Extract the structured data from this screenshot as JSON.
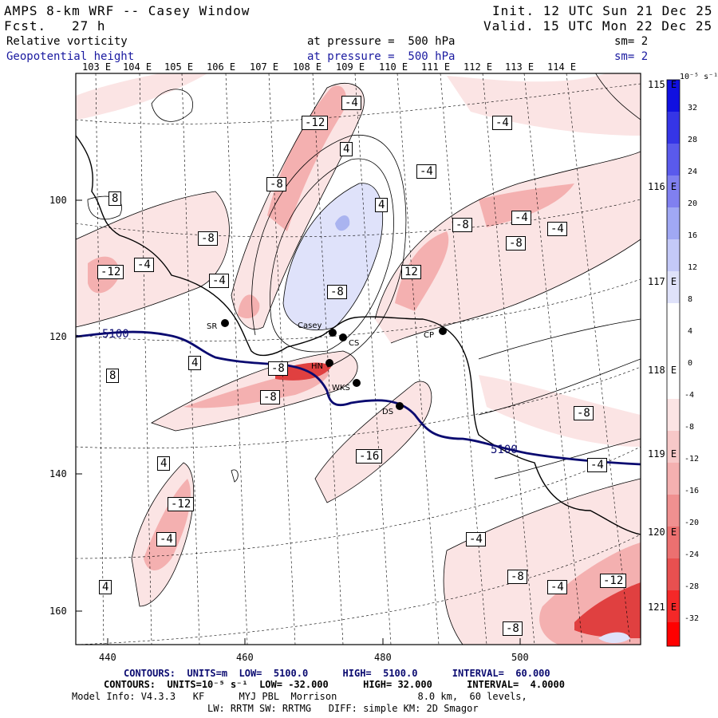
{
  "header": {
    "title": "AMPS 8-km WRF -- Casey Window",
    "fcst_label": "Fcst.",
    "fcst_value": "27 h",
    "init": "Init. 12 UTC Sun 21 Dec 25",
    "valid": "Valid. 15 UTC Mon 22 Dec 25",
    "field1_name": "Relative vorticity",
    "field1_level": "at pressure =  500 hPa",
    "field1_sm": "sm= 2",
    "field2_name": "Geopotential height",
    "field2_level": "at pressure =  500 hPa",
    "field2_sm": "sm= 2"
  },
  "lon_top": [
    "103 E",
    "104 E",
    "105 E",
    "106 E",
    "107 E",
    "108 E",
    "109 E",
    "110 E",
    "111 E",
    "112 E",
    "113 E",
    "114 E"
  ],
  "lon_right": [
    "115 E",
    "116 E",
    "117 E",
    "118 E",
    "119 E",
    "120 E",
    "121 E"
  ],
  "x_ticks": [
    "440",
    "460",
    "480",
    "500"
  ],
  "y_ticks": [
    "100",
    "120",
    "140",
    "160"
  ],
  "colorbar": {
    "unit": "10⁻⁵ s⁻¹",
    "labels": [
      "32",
      "28",
      "24",
      "20",
      "16",
      "12",
      "8",
      "4",
      "0",
      "-4",
      "-8",
      "-12",
      "-16",
      "-20",
      "-24",
      "-28",
      "-32"
    ]
  },
  "stations": [
    "SR",
    "Casey",
    "CS",
    "CP",
    "HN",
    "WKS",
    "DS"
  ],
  "height_contour": {
    "label": "5100",
    "color": "#0a0a70"
  },
  "vort_labels": [
    "-4",
    "-12",
    "-4",
    "4",
    "-8",
    "4",
    "-4",
    "8",
    "-8",
    "-8",
    "-4",
    "-8",
    "-4",
    "-12",
    "-4",
    "12",
    "-8",
    "-4",
    "8",
    "4",
    "-8",
    "-8",
    "4",
    "-12",
    "-4",
    "-4",
    "-8",
    "-4",
    "-12",
    "-16",
    "-8",
    "4",
    "-4",
    "-8"
  ],
  "footer": {
    "line1": "CONTOURS:  UNITS=m  LOW=  5100.0      HIGH=  5100.0      INTERVAL=  60.000",
    "line2": "CONTOURS:  UNITS=10⁻⁵ s⁻¹  LOW= -32.000      HIGH= 32.000      INTERVAL=  4.0000",
    "line3": "Model Info: V4.3.3   KF      MYJ PBL  Morrison              8.0 km,  60 levels,",
    "line4": "LW: RRTM SW: RRTMG   DIFF: simple KM: 2D Smagor"
  },
  "colors": {
    "pos_light": "#dfe2fa",
    "pos_mid": "#aab4f0",
    "pos_strong": "#1010e0",
    "neg_light": "#fbe4e4",
    "neg_mid": "#f4b0b0",
    "neg_strong": "#e04040",
    "neg_max": "#ff0000"
  }
}
